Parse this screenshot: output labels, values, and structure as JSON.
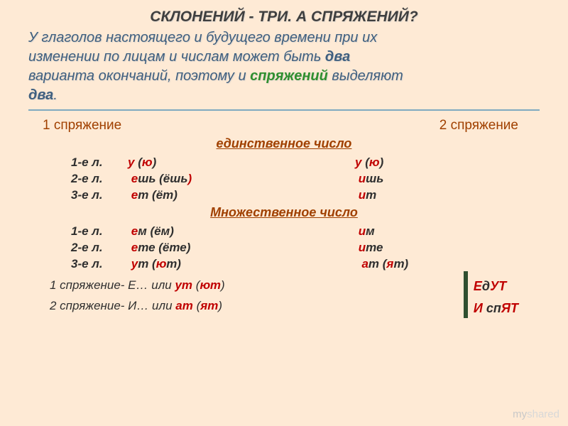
{
  "title": "СКЛОНЕНИЙ - ТРИ. А СПРЯЖЕНИЙ?",
  "intro": {
    "p1": "У глаголов настоящего и будущего времени при их",
    "p2a": "изменении по лицам и числам может быть ",
    "p2b": "два",
    "p3a": "варианта окончаний, поэтому и ",
    "p3b": "спряжений",
    "p3c": " выделяют",
    "p4": "два",
    "dot": "."
  },
  "cols": {
    "left": "1 спряжение",
    "right": "2 спряжение"
  },
  "sub_sg": "единственное число",
  "sub_pl": "Множественное число",
  "persons": {
    "p1": "1-е л.",
    "p2": "2-е л.",
    "p3": "3-е л."
  },
  "sg": {
    "r1c1": {
      "a": "у",
      "b": "   (",
      "c": "ю",
      "d": ")"
    },
    "r1c2": {
      "a": "у",
      "b": "   (",
      "c": "ю",
      "d": ")"
    },
    "r2c1": {
      "a": "е",
      "b": "шь (ёшь",
      "c": ")"
    },
    "r2c2": {
      "a": "и",
      "b": "шь"
    },
    "r3c1": {
      "a": "е",
      "b": "т   (ёт)"
    },
    "r3c2": {
      "a": "и",
      "b": "т"
    }
  },
  "pl": {
    "r1c1": {
      "a": "е",
      "b": "м  (ём)"
    },
    "r1c2": {
      "a": "и",
      "b": "м"
    },
    "r2c1": {
      "a": "е",
      "b": "те (ёте)"
    },
    "r2c2": {
      "a": "и",
      "b": "те"
    },
    "r3c1": {
      "a": "у",
      "b": "т  (",
      "c": "ю",
      "d": "т)"
    },
    "r3c2": {
      "a": "а",
      "b": "т   (",
      "c": "я",
      "d": "т)"
    }
  },
  "summaryLeft": {
    "l1a": "1 спряжение- Е… или ",
    "l1b": "ут",
    "l1c": " (",
    "l1d": "ют",
    "l1e": ")",
    "l2a": "2 спряжение- И… или ",
    "l2b": "ат",
    "l2c": " (",
    "l2d": "ят",
    "l2e": ")"
  },
  "summaryRight": {
    "l1a": "Е",
    "l1b": "д",
    "l1c": "УТ",
    "l2a": "И",
    "l2b": " сп",
    "l2c": "ЯТ"
  },
  "brand": {
    "a": "my",
    "b": "shared"
  },
  "colors": {
    "bg": "#feead5",
    "red": "#c00000",
    "dark": "#2f2f2f",
    "brown": "#a04000",
    "blue": "#3f5f7f",
    "green": "#2f8f2f"
  }
}
